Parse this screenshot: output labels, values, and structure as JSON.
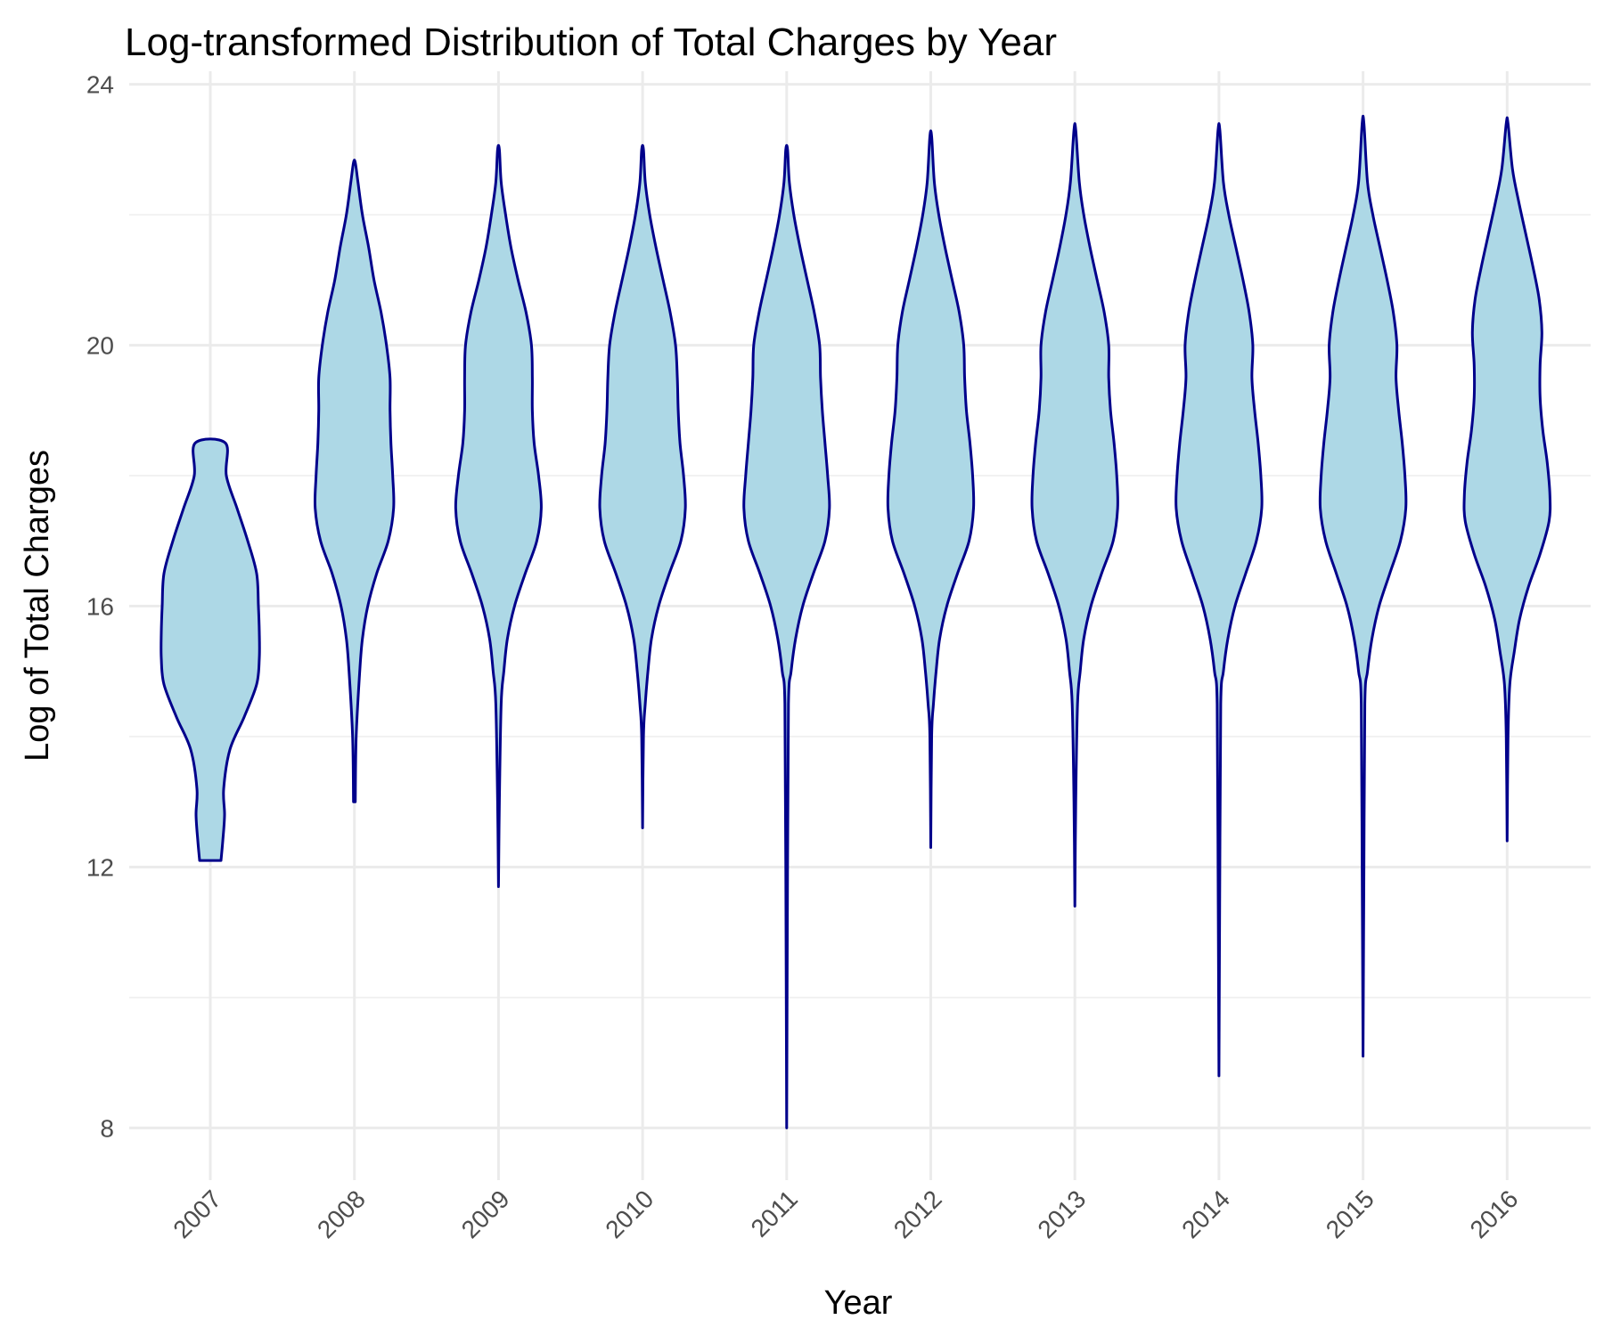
{
  "chart_data": {
    "type": "violin",
    "title": "Log-transformed Distribution of Total Charges by Year",
    "xlabel": "Year",
    "ylabel": "Log of Total Charges",
    "categories": [
      "2007",
      "2008",
      "2009",
      "2010",
      "2011",
      "2012",
      "2013",
      "2014",
      "2015",
      "2016"
    ],
    "ylim": [
      7.2,
      24.2
    ],
    "yticks": [
      8,
      12,
      16,
      20,
      24
    ],
    "grid": true,
    "colors": {
      "fill": "#add8e6",
      "stroke": "#00008b"
    },
    "violins": [
      {
        "year": "2007",
        "min": 12.1,
        "max": 18.5,
        "profile": [
          [
            12.1,
            0.12
          ],
          [
            12.4,
            0.14
          ],
          [
            12.8,
            0.16
          ],
          [
            13.2,
            0.15
          ],
          [
            13.8,
            0.22
          ],
          [
            14.3,
            0.38
          ],
          [
            14.8,
            0.52
          ],
          [
            15.2,
            0.55
          ],
          [
            15.6,
            0.55
          ],
          [
            16.0,
            0.54
          ],
          [
            16.5,
            0.52
          ],
          [
            17.0,
            0.42
          ],
          [
            17.5,
            0.3
          ],
          [
            18.0,
            0.18
          ],
          [
            18.5,
            0.17
          ]
        ]
      },
      {
        "year": "2008",
        "min": 13.0,
        "max": 22.8,
        "profile": [
          [
            13.0,
            0.01
          ],
          [
            14.0,
            0.02
          ],
          [
            15.0,
            0.06
          ],
          [
            15.5,
            0.09
          ],
          [
            16.0,
            0.15
          ],
          [
            16.5,
            0.25
          ],
          [
            17.0,
            0.38
          ],
          [
            17.5,
            0.44
          ],
          [
            18.0,
            0.43
          ],
          [
            18.5,
            0.41
          ],
          [
            19.0,
            0.4
          ],
          [
            19.5,
            0.4
          ],
          [
            20.0,
            0.36
          ],
          [
            20.5,
            0.3
          ],
          [
            21.0,
            0.22
          ],
          [
            21.5,
            0.16
          ],
          [
            22.0,
            0.09
          ],
          [
            22.5,
            0.04
          ],
          [
            22.8,
            0.01
          ]
        ]
      },
      {
        "year": "2009",
        "min": 11.7,
        "max": 23.0,
        "profile": [
          [
            11.7,
            0.0
          ],
          [
            13.0,
            0.01
          ],
          [
            14.5,
            0.03
          ],
          [
            15.0,
            0.06
          ],
          [
            15.5,
            0.1
          ],
          [
            16.0,
            0.18
          ],
          [
            16.5,
            0.3
          ],
          [
            17.0,
            0.43
          ],
          [
            17.5,
            0.48
          ],
          [
            18.0,
            0.45
          ],
          [
            18.5,
            0.4
          ],
          [
            19.0,
            0.38
          ],
          [
            19.5,
            0.38
          ],
          [
            20.0,
            0.37
          ],
          [
            20.5,
            0.31
          ],
          [
            21.0,
            0.22
          ],
          [
            21.5,
            0.14
          ],
          [
            22.0,
            0.08
          ],
          [
            22.5,
            0.03
          ],
          [
            23.0,
            0.01
          ]
        ]
      },
      {
        "year": "2010",
        "min": 12.6,
        "max": 23.0,
        "profile": [
          [
            12.6,
            0.0
          ],
          [
            14.0,
            0.01
          ],
          [
            14.5,
            0.03
          ],
          [
            15.0,
            0.06
          ],
          [
            15.5,
            0.1
          ],
          [
            16.0,
            0.18
          ],
          [
            16.5,
            0.3
          ],
          [
            17.0,
            0.43
          ],
          [
            17.5,
            0.48
          ],
          [
            18.0,
            0.46
          ],
          [
            18.5,
            0.42
          ],
          [
            19.0,
            0.4
          ],
          [
            19.5,
            0.39
          ],
          [
            20.0,
            0.37
          ],
          [
            20.5,
            0.31
          ],
          [
            21.0,
            0.23
          ],
          [
            21.5,
            0.15
          ],
          [
            22.0,
            0.08
          ],
          [
            22.5,
            0.03
          ],
          [
            23.0,
            0.01
          ]
        ]
      },
      {
        "year": "2011",
        "min": 8.0,
        "max": 23.0,
        "profile": [
          [
            8.0,
            0.0
          ],
          [
            12.0,
            0.01
          ],
          [
            14.5,
            0.02
          ],
          [
            15.0,
            0.05
          ],
          [
            15.5,
            0.1
          ],
          [
            16.0,
            0.18
          ],
          [
            16.5,
            0.3
          ],
          [
            17.0,
            0.43
          ],
          [
            17.5,
            0.48
          ],
          [
            18.0,
            0.46
          ],
          [
            18.5,
            0.43
          ],
          [
            19.0,
            0.4
          ],
          [
            19.5,
            0.38
          ],
          [
            20.0,
            0.37
          ],
          [
            20.5,
            0.31
          ],
          [
            21.0,
            0.23
          ],
          [
            21.5,
            0.15
          ],
          [
            22.0,
            0.08
          ],
          [
            22.5,
            0.03
          ],
          [
            23.0,
            0.01
          ]
        ]
      },
      {
        "year": "2012",
        "min": 12.3,
        "max": 23.2,
        "profile": [
          [
            12.3,
            0.0
          ],
          [
            14.0,
            0.01
          ],
          [
            14.5,
            0.03
          ],
          [
            15.0,
            0.06
          ],
          [
            15.5,
            0.1
          ],
          [
            16.0,
            0.18
          ],
          [
            16.5,
            0.3
          ],
          [
            17.0,
            0.43
          ],
          [
            17.5,
            0.48
          ],
          [
            18.0,
            0.47
          ],
          [
            18.5,
            0.44
          ],
          [
            19.0,
            0.4
          ],
          [
            19.5,
            0.38
          ],
          [
            20.0,
            0.37
          ],
          [
            20.5,
            0.32
          ],
          [
            21.0,
            0.24
          ],
          [
            21.5,
            0.16
          ],
          [
            22.0,
            0.09
          ],
          [
            22.5,
            0.04
          ],
          [
            23.2,
            0.01
          ]
        ]
      },
      {
        "year": "2013",
        "min": 11.4,
        "max": 23.3,
        "profile": [
          [
            11.4,
            0.0
          ],
          [
            13.0,
            0.01
          ],
          [
            14.5,
            0.03
          ],
          [
            15.0,
            0.06
          ],
          [
            15.5,
            0.1
          ],
          [
            16.0,
            0.18
          ],
          [
            16.5,
            0.3
          ],
          [
            17.0,
            0.43
          ],
          [
            17.5,
            0.48
          ],
          [
            18.0,
            0.47
          ],
          [
            18.5,
            0.44
          ],
          [
            19.0,
            0.4
          ],
          [
            19.5,
            0.38
          ],
          [
            20.0,
            0.38
          ],
          [
            20.5,
            0.33
          ],
          [
            21.0,
            0.25
          ],
          [
            21.5,
            0.17
          ],
          [
            22.0,
            0.1
          ],
          [
            22.5,
            0.05
          ],
          [
            23.3,
            0.01
          ]
        ]
      },
      {
        "year": "2014",
        "min": 8.8,
        "max": 23.3,
        "profile": [
          [
            8.8,
            0.0
          ],
          [
            12.0,
            0.01
          ],
          [
            14.5,
            0.02
          ],
          [
            15.0,
            0.05
          ],
          [
            15.5,
            0.1
          ],
          [
            16.0,
            0.18
          ],
          [
            16.5,
            0.3
          ],
          [
            17.0,
            0.42
          ],
          [
            17.5,
            0.48
          ],
          [
            18.0,
            0.47
          ],
          [
            18.5,
            0.44
          ],
          [
            19.0,
            0.4
          ],
          [
            19.5,
            0.37
          ],
          [
            20.0,
            0.38
          ],
          [
            20.5,
            0.34
          ],
          [
            21.0,
            0.27
          ],
          [
            21.5,
            0.19
          ],
          [
            22.0,
            0.11
          ],
          [
            22.5,
            0.05
          ],
          [
            23.3,
            0.01
          ]
        ]
      },
      {
        "year": "2015",
        "min": 9.1,
        "max": 23.4,
        "profile": [
          [
            9.1,
            0.0
          ],
          [
            12.0,
            0.01
          ],
          [
            14.5,
            0.02
          ],
          [
            15.0,
            0.05
          ],
          [
            15.5,
            0.1
          ],
          [
            16.0,
            0.18
          ],
          [
            16.5,
            0.3
          ],
          [
            17.0,
            0.42
          ],
          [
            17.5,
            0.48
          ],
          [
            18.0,
            0.47
          ],
          [
            18.5,
            0.44
          ],
          [
            19.0,
            0.4
          ],
          [
            19.5,
            0.37
          ],
          [
            20.0,
            0.38
          ],
          [
            20.5,
            0.34
          ],
          [
            21.0,
            0.27
          ],
          [
            21.5,
            0.19
          ],
          [
            22.0,
            0.11
          ],
          [
            22.5,
            0.05
          ],
          [
            23.4,
            0.01
          ]
        ]
      },
      {
        "year": "2016",
        "min": 12.4,
        "max": 23.4,
        "profile": [
          [
            12.4,
            0.0
          ],
          [
            14.0,
            0.01
          ],
          [
            14.8,
            0.03
          ],
          [
            15.3,
            0.08
          ],
          [
            15.8,
            0.14
          ],
          [
            16.3,
            0.24
          ],
          [
            16.8,
            0.37
          ],
          [
            17.3,
            0.47
          ],
          [
            17.7,
            0.48
          ],
          [
            18.2,
            0.45
          ],
          [
            18.7,
            0.4
          ],
          [
            19.2,
            0.37
          ],
          [
            19.7,
            0.37
          ],
          [
            20.2,
            0.39
          ],
          [
            20.7,
            0.36
          ],
          [
            21.2,
            0.29
          ],
          [
            21.7,
            0.21
          ],
          [
            22.2,
            0.13
          ],
          [
            22.7,
            0.06
          ],
          [
            23.4,
            0.01
          ]
        ]
      }
    ]
  }
}
